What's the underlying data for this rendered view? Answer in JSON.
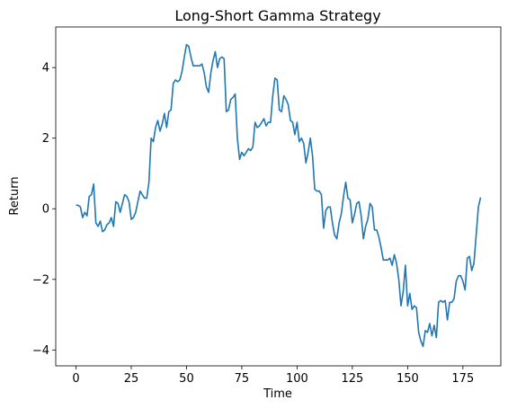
{
  "chart_data": {
    "type": "line",
    "title": "Long-Short Gamma Strategy",
    "xlabel": "Time",
    "ylabel": "Return",
    "x": [
      0,
      1,
      2,
      3,
      4,
      5,
      6,
      7,
      8,
      9,
      10,
      11,
      12,
      13,
      14,
      15,
      16,
      17,
      18,
      19,
      20,
      21,
      22,
      23,
      24,
      25,
      26,
      27,
      28,
      29,
      30,
      31,
      32,
      33,
      34,
      35,
      36,
      37,
      38,
      39,
      40,
      41,
      42,
      43,
      44,
      45,
      46,
      47,
      48,
      49,
      50,
      51,
      52,
      53,
      54,
      55,
      56,
      57,
      58,
      59,
      60,
      61,
      62,
      63,
      64,
      65,
      66,
      67,
      68,
      69,
      70,
      71,
      72,
      73,
      74,
      75,
      76,
      77,
      78,
      79,
      80,
      81,
      82,
      83,
      84,
      85,
      86,
      87,
      88,
      89,
      90,
      91,
      92,
      93,
      94,
      95,
      96,
      97,
      98,
      99,
      100,
      101,
      102,
      103,
      104,
      105,
      106,
      107,
      108,
      109,
      110,
      111,
      112,
      113,
      114,
      115,
      116,
      117,
      118,
      119,
      120,
      121,
      122,
      123,
      124,
      125,
      126,
      127,
      128,
      129,
      130,
      131,
      132,
      133,
      134,
      135,
      136,
      137,
      138,
      139,
      140,
      141,
      142,
      143,
      144,
      145,
      146,
      147,
      148,
      149,
      150,
      151,
      152,
      153,
      154,
      155,
      156,
      157,
      158,
      159,
      160,
      161,
      162,
      163,
      164,
      165,
      166,
      167,
      168,
      169,
      170,
      171,
      172,
      173,
      174,
      175,
      176,
      177,
      178,
      179,
      180,
      181,
      182,
      183
    ],
    "series": [
      {
        "name": "Return",
        "color": "#1f77b4",
        "values": [
          0.1,
          0.1,
          0.05,
          -0.25,
          -0.1,
          -0.2,
          0.35,
          0.4,
          0.7,
          -0.4,
          -0.5,
          -0.35,
          -0.65,
          -0.6,
          -0.45,
          -0.4,
          -0.25,
          -0.5,
          0.2,
          0.15,
          -0.1,
          0.15,
          0.4,
          0.35,
          0.2,
          -0.3,
          -0.25,
          -0.1,
          0.2,
          0.5,
          0.4,
          0.3,
          0.3,
          0.75,
          2.0,
          1.9,
          2.3,
          2.5,
          2.2,
          2.4,
          2.7,
          2.3,
          2.75,
          2.8,
          3.55,
          3.65,
          3.6,
          3.65,
          3.9,
          4.3,
          4.65,
          4.6,
          4.3,
          4.05,
          4.05,
          4.05,
          4.05,
          4.1,
          3.85,
          3.45,
          3.3,
          3.85,
          4.2,
          4.45,
          4.0,
          4.25,
          4.3,
          4.25,
          2.75,
          2.8,
          3.1,
          3.15,
          3.25,
          2.0,
          1.4,
          1.6,
          1.5,
          1.6,
          1.7,
          1.65,
          1.75,
          2.45,
          2.3,
          2.35,
          2.45,
          2.55,
          2.35,
          2.45,
          2.45,
          3.2,
          3.7,
          3.65,
          2.8,
          2.75,
          3.2,
          3.1,
          2.95,
          2.5,
          2.45,
          2.1,
          2.45,
          1.9,
          2.0,
          1.85,
          1.3,
          1.6,
          2.0,
          1.5,
          0.55,
          0.5,
          0.5,
          0.4,
          -0.55,
          -0.05,
          0.05,
          0.05,
          -0.4,
          -0.75,
          -0.85,
          -0.4,
          -0.15,
          0.35,
          0.75,
          0.3,
          0.25,
          -0.4,
          -0.15,
          0.15,
          0.2,
          -0.2,
          -0.85,
          -0.5,
          -0.3,
          0.15,
          0.05,
          -0.6,
          -0.6,
          -0.8,
          -1.1,
          -1.45,
          -1.45,
          -1.45,
          -1.4,
          -1.6,
          -1.3,
          -1.55,
          -2.0,
          -2.75,
          -2.35,
          -1.6,
          -2.75,
          -2.4,
          -2.85,
          -2.75,
          -2.8,
          -3.5,
          -3.75,
          -3.9,
          -3.45,
          -3.5,
          -3.25,
          -3.6,
          -3.3,
          -3.65,
          -2.65,
          -2.6,
          -2.65,
          -2.6,
          -3.15,
          -2.65,
          -2.65,
          -2.55,
          -2.05,
          -1.9,
          -1.9,
          -2.05,
          -2.3,
          -1.4,
          -1.35,
          -1.75,
          -1.55,
          -0.75,
          0.05,
          0.32
        ]
      }
    ],
    "xlim": [
      -9.15,
      192.15
    ],
    "xticks": [
      0,
      25,
      50,
      75,
      100,
      125,
      150,
      175
    ],
    "ylim": [
      -4.45,
      5.15
    ],
    "yticks": [
      {
        "value": -4,
        "label": "−4"
      },
      {
        "value": -2,
        "label": "−2"
      },
      0,
      2,
      4
    ]
  }
}
